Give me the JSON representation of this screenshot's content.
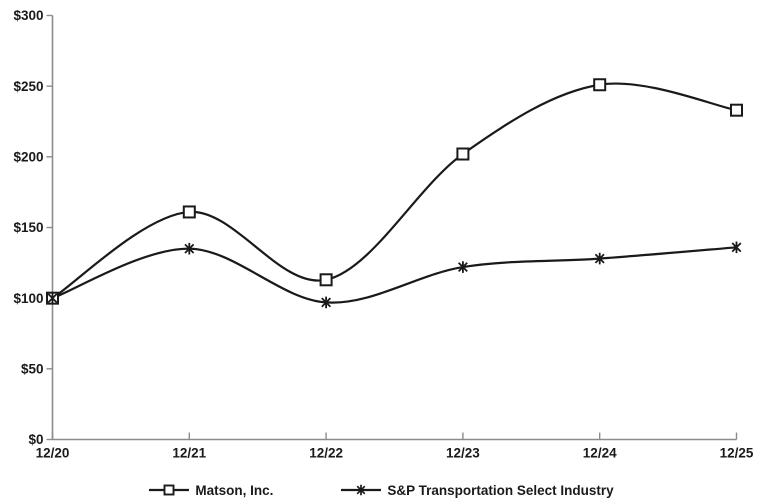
{
  "chart_data": {
    "type": "line",
    "smooth": true,
    "categories": [
      "12/20",
      "12/21",
      "12/22",
      "12/23",
      "12/24",
      "12/25"
    ],
    "series": [
      {
        "name": "Matson, Inc.",
        "marker": "open-square",
        "values": [
          100,
          161,
          113,
          202,
          251,
          233
        ]
      },
      {
        "name": "S&P Transportation Select Industry",
        "marker": "asterisk",
        "values": [
          100,
          135,
          97,
          122,
          128,
          136
        ]
      }
    ],
    "y_ticks": [
      0,
      50,
      100,
      150,
      200,
      250,
      300
    ],
    "y_tick_labels": [
      "$0",
      "$50",
      "$100",
      "$150",
      "$200",
      "$250",
      "$300"
    ],
    "ylim": [
      0,
      300
    ],
    "xlabel": "",
    "ylabel": "",
    "title": "",
    "grid": false,
    "legend_position": "bottom",
    "colors": {
      "line": "#1a1a1a",
      "axis": "#8c8c8c",
      "marker_fill": "#ffffff",
      "text": "#1a1a1a",
      "background": "#ffffff"
    }
  }
}
